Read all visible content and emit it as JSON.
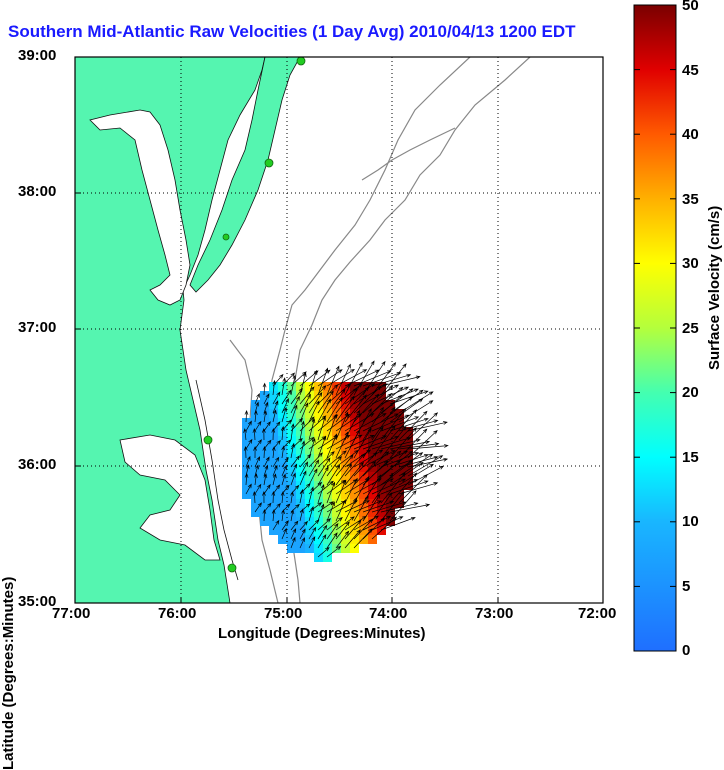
{
  "title": "Southern Mid-Atlantic Raw Velocities (1 Day Avg) 2010/04/13 1200 EDT",
  "axes": {
    "xlabel": "Longitude (Degrees:Minutes)",
    "ylabel": "Latitude (Degrees:Minutes)",
    "xticks": [
      "77:00",
      "76:00",
      "75:00",
      "74:00",
      "73:00",
      "72:00"
    ],
    "yticks": [
      "39:00",
      "38:00",
      "37:00",
      "36:00",
      "35:00"
    ]
  },
  "colorbar": {
    "label": "Surface Velocity (cm/s)",
    "ticks": [
      "50",
      "45",
      "40",
      "35",
      "30",
      "25",
      "20",
      "15",
      "10",
      "5",
      "0"
    ],
    "min": 0,
    "max": 50
  },
  "map": {
    "lon_range": [
      -77,
      -72
    ],
    "lat_range": [
      35,
      39
    ],
    "land_color": "#55f5b0",
    "contour_color": "#888888",
    "station_color": "#22cc22",
    "grid": true
  }
}
